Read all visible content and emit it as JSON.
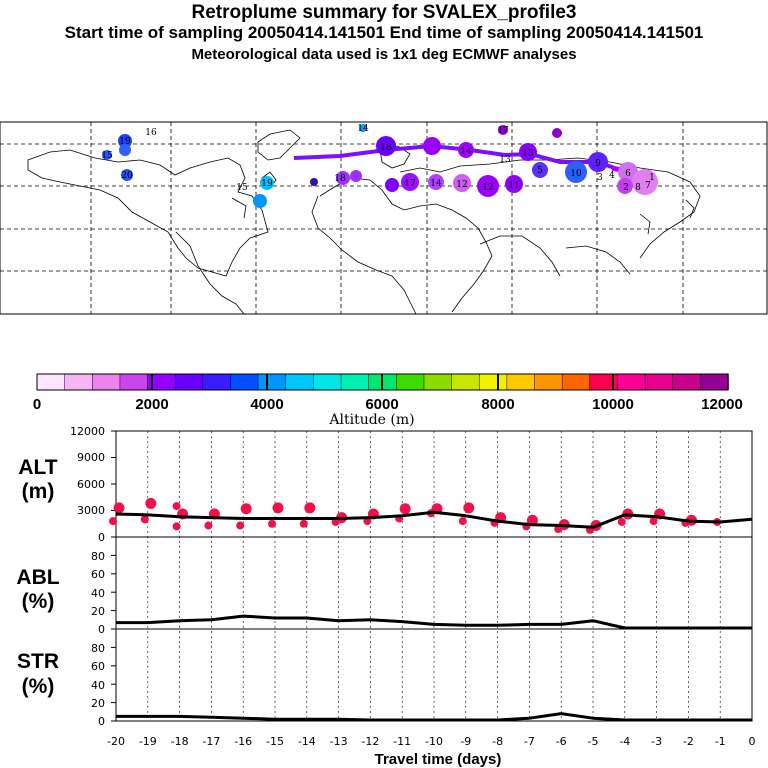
{
  "title": {
    "line1": "Retroplume summary for SVALEX_profile3",
    "line2": "Start time of sampling 20050414.141501     End time of sampling 20050414.141501",
    "line3": "Meteorological data used is 1x1 deg ECMWF analyses"
  },
  "colorbar": {
    "label": "Altitude (m)",
    "ticks": [
      "0",
      "2000",
      "4000",
      "6000",
      "8000",
      "10000",
      "12000"
    ],
    "colors": [
      "#ffe6ff",
      "#f7b4f7",
      "#ee82ee",
      "#cc44ee",
      "#9400ff",
      "#6a00ff",
      "#3a1cff",
      "#0050ff",
      "#0096ff",
      "#00c8ff",
      "#00e6e6",
      "#00f0b4",
      "#00e66e",
      "#3cdc00",
      "#8cdc00",
      "#c8e600",
      "#f0f000",
      "#ffc800",
      "#ff9600",
      "#ff6400",
      "#ff0050",
      "#ff0096",
      "#e6008c",
      "#c8008c",
      "#960096"
    ]
  },
  "map": {
    "trajectory_labels": [
      "19",
      "16",
      "15",
      "14",
      "15",
      "17",
      "18",
      "19",
      "20",
      "18",
      "14",
      "13",
      "13",
      "17",
      "14",
      "12",
      "10",
      "9",
      "6",
      "5",
      "4",
      "2",
      "3",
      "1",
      "8",
      "7",
      "11",
      "12"
    ]
  },
  "panels": {
    "alt": {
      "label_top": "ALT",
      "label_bottom": "(m)",
      "yticks": [
        "0",
        "3000",
        "6000",
        "9000",
        "12000"
      ]
    },
    "abl": {
      "label_top": "ABL",
      "label_bottom": "(%)",
      "yticks": [
        "0",
        "20",
        "40",
        "60",
        "80"
      ]
    },
    "str": {
      "label_top": "STR",
      "label_bottom": "(%)",
      "yticks": [
        "0",
        "20",
        "40",
        "60",
        "80"
      ]
    }
  },
  "xaxis": {
    "label": "Travel time (days)",
    "ticks": [
      "-20",
      "-19",
      "-18",
      "-17",
      "-16",
      "-15",
      "-14",
      "-13",
      "-12",
      "-11",
      "-10",
      "-9",
      "-8",
      "-7",
      "-6",
      "-5",
      "-4",
      "-3",
      "-2",
      "-1",
      "0"
    ]
  },
  "chart_data": [
    {
      "type": "line",
      "title": "ALT",
      "xlabel": "Travel time (days)",
      "ylabel": "ALT (m)",
      "x": [
        -20,
        -19,
        -18,
        -17,
        -16,
        -15,
        -14,
        -13,
        -12,
        -11,
        -10,
        -9,
        -8,
        -7,
        -6,
        -5,
        -4,
        -3,
        -2,
        -1,
        0
      ],
      "y": [
        2600,
        2500,
        2300,
        2200,
        2100,
        2100,
        2100,
        2100,
        2200,
        2400,
        2800,
        2400,
        1800,
        1400,
        1300,
        1100,
        2500,
        2300,
        1800,
        1700,
        2000
      ],
      "ylim": [
        0,
        12000
      ],
      "scatter_points": [
        {
          "x": -20,
          "y": [
            1800,
            3300
          ]
        },
        {
          "x": -19,
          "y": [
            2000,
            3800
          ]
        },
        {
          "x": -18,
          "y": [
            1200,
            2600,
            3500
          ]
        },
        {
          "x": -17,
          "y": [
            1300,
            2600
          ]
        },
        {
          "x": -16,
          "y": [
            1300,
            3200
          ]
        },
        {
          "x": -15,
          "y": [
            1500,
            3300
          ]
        },
        {
          "x": -14,
          "y": [
            1500,
            3300
          ]
        },
        {
          "x": -13,
          "y": [
            1700,
            2200
          ]
        },
        {
          "x": -12,
          "y": [
            1800,
            2600
          ]
        },
        {
          "x": -11,
          "y": [
            2100,
            3200
          ]
        },
        {
          "x": -10,
          "y": [
            2700,
            3200
          ]
        },
        {
          "x": -9,
          "y": [
            1800,
            3300
          ]
        },
        {
          "x": -8,
          "y": [
            1600,
            2200
          ]
        },
        {
          "x": -7,
          "y": [
            1200,
            1900
          ]
        },
        {
          "x": -6,
          "y": [
            900,
            1400
          ]
        },
        {
          "x": -5,
          "y": [
            800,
            1300
          ]
        },
        {
          "x": -4,
          "y": [
            1700,
            2600
          ]
        },
        {
          "x": -3,
          "y": [
            1800,
            2600
          ]
        },
        {
          "x": -2,
          "y": [
            1600,
            1900
          ]
        },
        {
          "x": -1,
          "y": [
            1700
          ]
        }
      ]
    },
    {
      "type": "line",
      "title": "ABL",
      "xlabel": "Travel time (days)",
      "ylabel": "ABL (%)",
      "x": [
        -20,
        -19,
        -18,
        -17,
        -16,
        -15,
        -14,
        -13,
        -12,
        -11,
        -10,
        -9,
        -8,
        -7,
        -6,
        -5,
        -4,
        -3,
        -2,
        -1,
        0
      ],
      "y": [
        7,
        7,
        9,
        10,
        14,
        12,
        12,
        9,
        10,
        8,
        5,
        4,
        4,
        5,
        5,
        9,
        0,
        0,
        0,
        0,
        0
      ],
      "ylim": [
        0,
        100
      ]
    },
    {
      "type": "line",
      "title": "STR",
      "xlabel": "Travel time (days)",
      "ylabel": "STR (%)",
      "x": [
        -20,
        -19,
        -18,
        -17,
        -16,
        -15,
        -14,
        -13,
        -12,
        -11,
        -10,
        -9,
        -8,
        -7,
        -6,
        -5,
        -4,
        -3,
        -2,
        -1,
        0
      ],
      "y": [
        5,
        5,
        5,
        4,
        3,
        2,
        2,
        2,
        1,
        0,
        0,
        0,
        0,
        3,
        8,
        3,
        0,
        0,
        0,
        0,
        0
      ],
      "ylim": [
        0,
        100
      ]
    }
  ]
}
